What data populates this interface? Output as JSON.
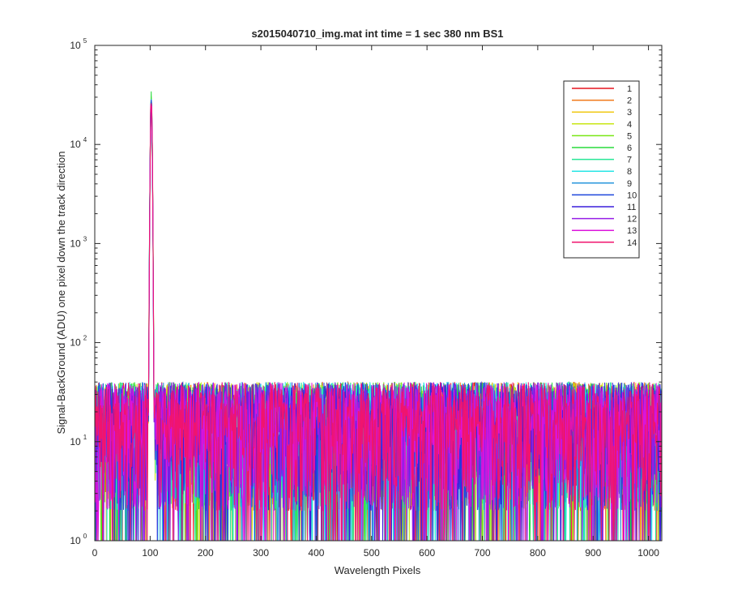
{
  "chart_data": {
    "type": "line",
    "title": "s2015040710_img.mat int time = 1 sec  380 nm BS1",
    "xlabel": "Wavelength Pixels",
    "ylabel": "Signal-BackGround (ADU) one pixel down the track direction",
    "xlim": [
      0,
      1024
    ],
    "ylim": [
      1,
      100000
    ],
    "yscale": "log",
    "grid": false,
    "legend_position": "top-right",
    "x_ticks": [
      0,
      100,
      200,
      300,
      400,
      500,
      600,
      700,
      800,
      900,
      1000
    ],
    "x_tick_labels": [
      "0",
      "100",
      "200",
      "300",
      "400",
      "500",
      "600",
      "700",
      "800",
      "900",
      "1000"
    ],
    "y_ticks": [
      1,
      10,
      100,
      1000,
      10000,
      100000
    ],
    "y_tick_labels": [
      {
        "base": "10",
        "exp": "0"
      },
      {
        "base": "10",
        "exp": "1"
      },
      {
        "base": "10",
        "exp": "2"
      },
      {
        "base": "10",
        "exp": "3"
      },
      {
        "base": "10",
        "exp": "4"
      },
      {
        "base": "10",
        "exp": "5"
      }
    ],
    "peak": {
      "x": 102,
      "y": 35000
    },
    "baseline_typical_range": [
      2,
      40
    ],
    "series": [
      {
        "name": "1",
        "color": "#e6141e"
      },
      {
        "name": "2",
        "color": "#f07818"
      },
      {
        "name": "3",
        "color": "#f0c814"
      },
      {
        "name": "4",
        "color": "#c8e614"
      },
      {
        "name": "5",
        "color": "#78e614"
      },
      {
        "name": "6",
        "color": "#28dc3c"
      },
      {
        "name": "7",
        "color": "#28e696"
      },
      {
        "name": "8",
        "color": "#28e6e6"
      },
      {
        "name": "9",
        "color": "#2896dc"
      },
      {
        "name": "10",
        "color": "#1e46dc"
      },
      {
        "name": "11",
        "color": "#3c1edc"
      },
      {
        "name": "12",
        "color": "#961ee6"
      },
      {
        "name": "13",
        "color": "#dc14dc"
      },
      {
        "name": "14",
        "color": "#f0146e"
      }
    ]
  }
}
